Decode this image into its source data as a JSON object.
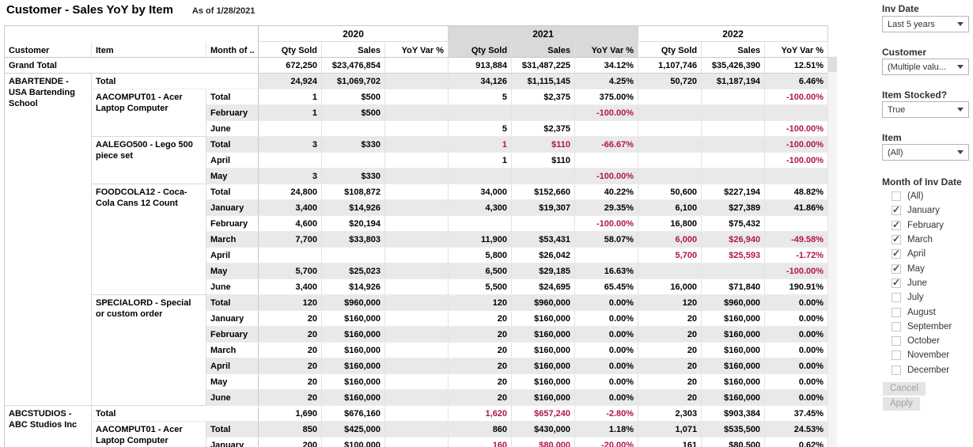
{
  "title": {
    "text": "Customer - Sales YoY by Item",
    "as_of": "As of 1/28/2021"
  },
  "colors": {
    "negative": "#b1164a",
    "row_band": "#e9e9e9",
    "header_band": "#d9d9d9"
  },
  "pivot": {
    "years": [
      "2020",
      "2021",
      "2022"
    ],
    "dim_headers": {
      "customer": "Customer",
      "item": "Item",
      "month": "Month of .."
    },
    "measure_headers": [
      "Qty Sold",
      "Sales",
      "YoY Var %"
    ],
    "rows": [
      {
        "type": "grand",
        "label": "Grand Total",
        "cells": [
          "672,250",
          "$23,476,854",
          "",
          "913,884",
          "$31,487,225",
          "34.12%",
          "1,107,746",
          "$35,426,390",
          "12.51%"
        ],
        "neg": []
      },
      {
        "type": "ctotal",
        "customer": {
          "text": "ABARTENDE  -  USA Bartending School",
          "rowspan": 21
        },
        "label": "Total",
        "cells": [
          "24,924",
          "$1,069,702",
          "",
          "34,126",
          "$1,115,145",
          "4.25%",
          "50,720",
          "$1,187,194",
          "6.46%"
        ],
        "neg": []
      },
      {
        "type": "detail",
        "item": {
          "text": "AACOMPUT01  -  Acer Laptop Computer",
          "rowspan": 3
        },
        "month": "Total",
        "cells": [
          "1",
          "$500",
          "",
          "5",
          "$2,375",
          "375.00%",
          "",
          "",
          "-100.00%"
        ],
        "neg": [
          8
        ]
      },
      {
        "type": "detail",
        "month": "February",
        "cells": [
          "1",
          "$500",
          "",
          "",
          "",
          "-100.00%",
          "",
          "",
          ""
        ],
        "neg": [
          5
        ]
      },
      {
        "type": "detail",
        "month": "June",
        "cells": [
          "",
          "",
          "",
          "5",
          "$2,375",
          "",
          "",
          "",
          "-100.00%"
        ],
        "neg": [
          8
        ]
      },
      {
        "type": "detail",
        "item": {
          "text": "AALEGO500  -  Lego 500 piece set",
          "rowspan": 3
        },
        "month": "Total",
        "cells": [
          "3",
          "$330",
          "",
          "1",
          "$110",
          "-66.67%",
          "",
          "",
          "-100.00%"
        ],
        "neg": [
          3,
          4,
          5,
          8
        ]
      },
      {
        "type": "detail",
        "month": "April",
        "cells": [
          "",
          "",
          "",
          "1",
          "$110",
          "",
          "",
          "",
          "-100.00%"
        ],
        "neg": [
          8
        ]
      },
      {
        "type": "detail",
        "month": "May",
        "cells": [
          "3",
          "$330",
          "",
          "",
          "",
          "-100.00%",
          "",
          "",
          ""
        ],
        "neg": [
          5
        ]
      },
      {
        "type": "detail",
        "item": {
          "text": "FOODCOLA12  -  Coca-Cola Cans 12 Count",
          "rowspan": 7
        },
        "month": "Total",
        "cells": [
          "24,800",
          "$108,872",
          "",
          "34,000",
          "$152,660",
          "40.22%",
          "50,600",
          "$227,194",
          "48.82%"
        ],
        "neg": []
      },
      {
        "type": "detail",
        "month": "January",
        "cells": [
          "3,400",
          "$14,926",
          "",
          "4,300",
          "$19,307",
          "29.35%",
          "6,100",
          "$27,389",
          "41.86%"
        ],
        "neg": []
      },
      {
        "type": "detail",
        "month": "February",
        "cells": [
          "4,600",
          "$20,194",
          "",
          "",
          "",
          "-100.00%",
          "16,800",
          "$75,432",
          ""
        ],
        "neg": [
          5
        ]
      },
      {
        "type": "detail",
        "month": "March",
        "cells": [
          "7,700",
          "$33,803",
          "",
          "11,900",
          "$53,431",
          "58.07%",
          "6,000",
          "$26,940",
          "-49.58%"
        ],
        "neg": [
          6,
          7,
          8
        ]
      },
      {
        "type": "detail",
        "month": "April",
        "cells": [
          "",
          "",
          "",
          "5,800",
          "$26,042",
          "",
          "5,700",
          "$25,593",
          "-1.72%"
        ],
        "neg": [
          6,
          7,
          8
        ]
      },
      {
        "type": "detail",
        "month": "May",
        "cells": [
          "5,700",
          "$25,023",
          "",
          "6,500",
          "$29,185",
          "16.63%",
          "",
          "",
          "-100.00%"
        ],
        "neg": [
          8
        ]
      },
      {
        "type": "detail",
        "month": "June",
        "cells": [
          "3,400",
          "$14,926",
          "",
          "5,500",
          "$24,695",
          "65.45%",
          "16,000",
          "$71,840",
          "190.91%"
        ],
        "neg": []
      },
      {
        "type": "detail",
        "item": {
          "text": "SPECIALORD  -  Special or custom order",
          "rowspan": 7
        },
        "month": "Total",
        "cells": [
          "120",
          "$960,000",
          "",
          "120",
          "$960,000",
          "0.00%",
          "120",
          "$960,000",
          "0.00%"
        ],
        "neg": []
      },
      {
        "type": "detail",
        "month": "January",
        "cells": [
          "20",
          "$160,000",
          "",
          "20",
          "$160,000",
          "0.00%",
          "20",
          "$160,000",
          "0.00%"
        ],
        "neg": []
      },
      {
        "type": "detail",
        "month": "February",
        "cells": [
          "20",
          "$160,000",
          "",
          "20",
          "$160,000",
          "0.00%",
          "20",
          "$160,000",
          "0.00%"
        ],
        "neg": []
      },
      {
        "type": "detail",
        "month": "March",
        "cells": [
          "20",
          "$160,000",
          "",
          "20",
          "$160,000",
          "0.00%",
          "20",
          "$160,000",
          "0.00%"
        ],
        "neg": []
      },
      {
        "type": "detail",
        "month": "April",
        "cells": [
          "20",
          "$160,000",
          "",
          "20",
          "$160,000",
          "0.00%",
          "20",
          "$160,000",
          "0.00%"
        ],
        "neg": []
      },
      {
        "type": "detail",
        "month": "May",
        "cells": [
          "20",
          "$160,000",
          "",
          "20",
          "$160,000",
          "0.00%",
          "20",
          "$160,000",
          "0.00%"
        ],
        "neg": []
      },
      {
        "type": "detail",
        "month": "June",
        "cells": [
          "20",
          "$160,000",
          "",
          "20",
          "$160,000",
          "0.00%",
          "20",
          "$160,000",
          "0.00%"
        ],
        "neg": []
      },
      {
        "type": "ctotal",
        "customer": {
          "text": "ABCSTUDIOS  -  ABC Studios Inc",
          "rowspan": 3
        },
        "label": "Total",
        "cells": [
          "1,690",
          "$676,160",
          "",
          "1,620",
          "$657,240",
          "-2.80%",
          "2,303",
          "$903,384",
          "37.45%"
        ],
        "neg": [
          3,
          4,
          5
        ]
      },
      {
        "type": "detail",
        "item": {
          "text": "AACOMPUT01  -  Acer Laptop Computer",
          "rowspan": 2
        },
        "month": "Total",
        "cells": [
          "850",
          "$425,000",
          "",
          "860",
          "$430,000",
          "1.18%",
          "1,071",
          "$535,500",
          "24.53%"
        ],
        "neg": []
      },
      {
        "type": "detail",
        "month": "January",
        "cells": [
          "200",
          "$100,000",
          "",
          "160",
          "$80,000",
          "-20.00%",
          "161",
          "$80,500",
          "0.62%"
        ],
        "neg": [
          3,
          4,
          5
        ]
      }
    ]
  },
  "filters": {
    "inv_date": {
      "label": "Inv Date",
      "value": "Last 5 years"
    },
    "customer": {
      "label": "Customer",
      "value": "(Multiple valu..."
    },
    "item_stocked": {
      "label": "Item Stocked?",
      "value": "True"
    },
    "item": {
      "label": "Item",
      "value": "(All)"
    },
    "month_of_inv_date": {
      "label": "Month of Inv Date",
      "options": [
        {
          "label": "(All)",
          "checked": false
        },
        {
          "label": "January",
          "checked": true
        },
        {
          "label": "February",
          "checked": true
        },
        {
          "label": "March",
          "checked": true
        },
        {
          "label": "April",
          "checked": true
        },
        {
          "label": "May",
          "checked": true
        },
        {
          "label": "June",
          "checked": true
        },
        {
          "label": "July",
          "checked": false
        },
        {
          "label": "August",
          "checked": false
        },
        {
          "label": "September",
          "checked": false
        },
        {
          "label": "October",
          "checked": false
        },
        {
          "label": "November",
          "checked": false
        },
        {
          "label": "December",
          "checked": false
        }
      ],
      "cancel": "Cancel",
      "apply": "Apply"
    }
  }
}
